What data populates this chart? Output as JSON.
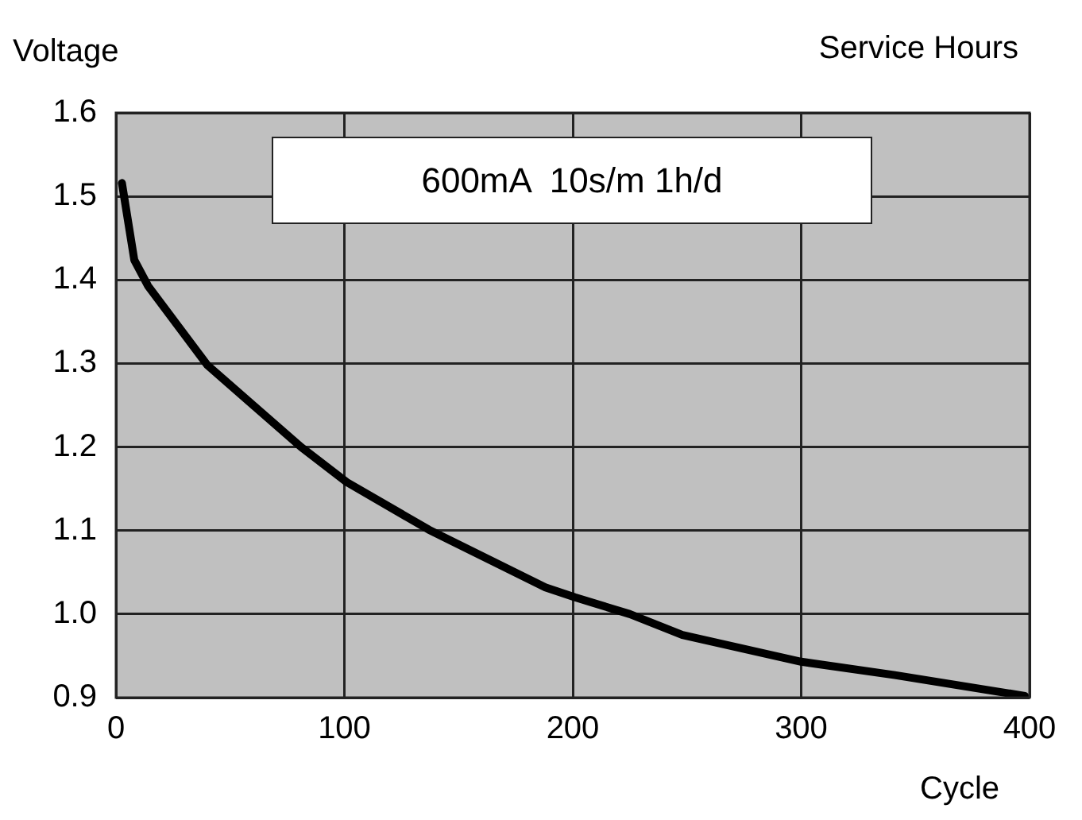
{
  "chart_data": {
    "type": "line",
    "xlabel": "Cycle",
    "ylabel": "Voltage",
    "annotations": [
      "600mA  10s/m 1h/d",
      "Service Hours"
    ],
    "series": [
      {
        "color": "#000000",
        "x": [
          2.6,
          8,
          14,
          40,
          81,
          101,
          137,
          188,
          201,
          225,
          248,
          300,
          341,
          398
        ],
        "values": [
          1.516,
          1.424,
          1.393,
          1.298,
          1.2,
          1.158,
          1.101,
          1.032,
          1.02,
          1.0,
          0.975,
          0.943,
          0.927,
          0.902
        ]
      }
    ],
    "xlim": [
      0,
      400
    ],
    "xticks": [
      0,
      100,
      200,
      300,
      400
    ],
    "ylim": [
      0.9,
      1.6
    ],
    "yticks": [
      {
        "value": 0.9,
        "label": "0.9"
      },
      {
        "value": 1.0,
        "label": "1.0"
      },
      {
        "value": 1.1,
        "label": "1.1"
      },
      {
        "value": 1.2,
        "label": "1.2"
      },
      {
        "value": 1.3,
        "label": "1.3"
      },
      {
        "value": 1.4,
        "label": "1.4"
      },
      {
        "value": 1.5,
        "label": "1.5"
      },
      {
        "value": 1.6,
        "label": "1.6"
      }
    ],
    "grid": true,
    "legend": false,
    "marker": "none",
    "line_style": "solid"
  }
}
